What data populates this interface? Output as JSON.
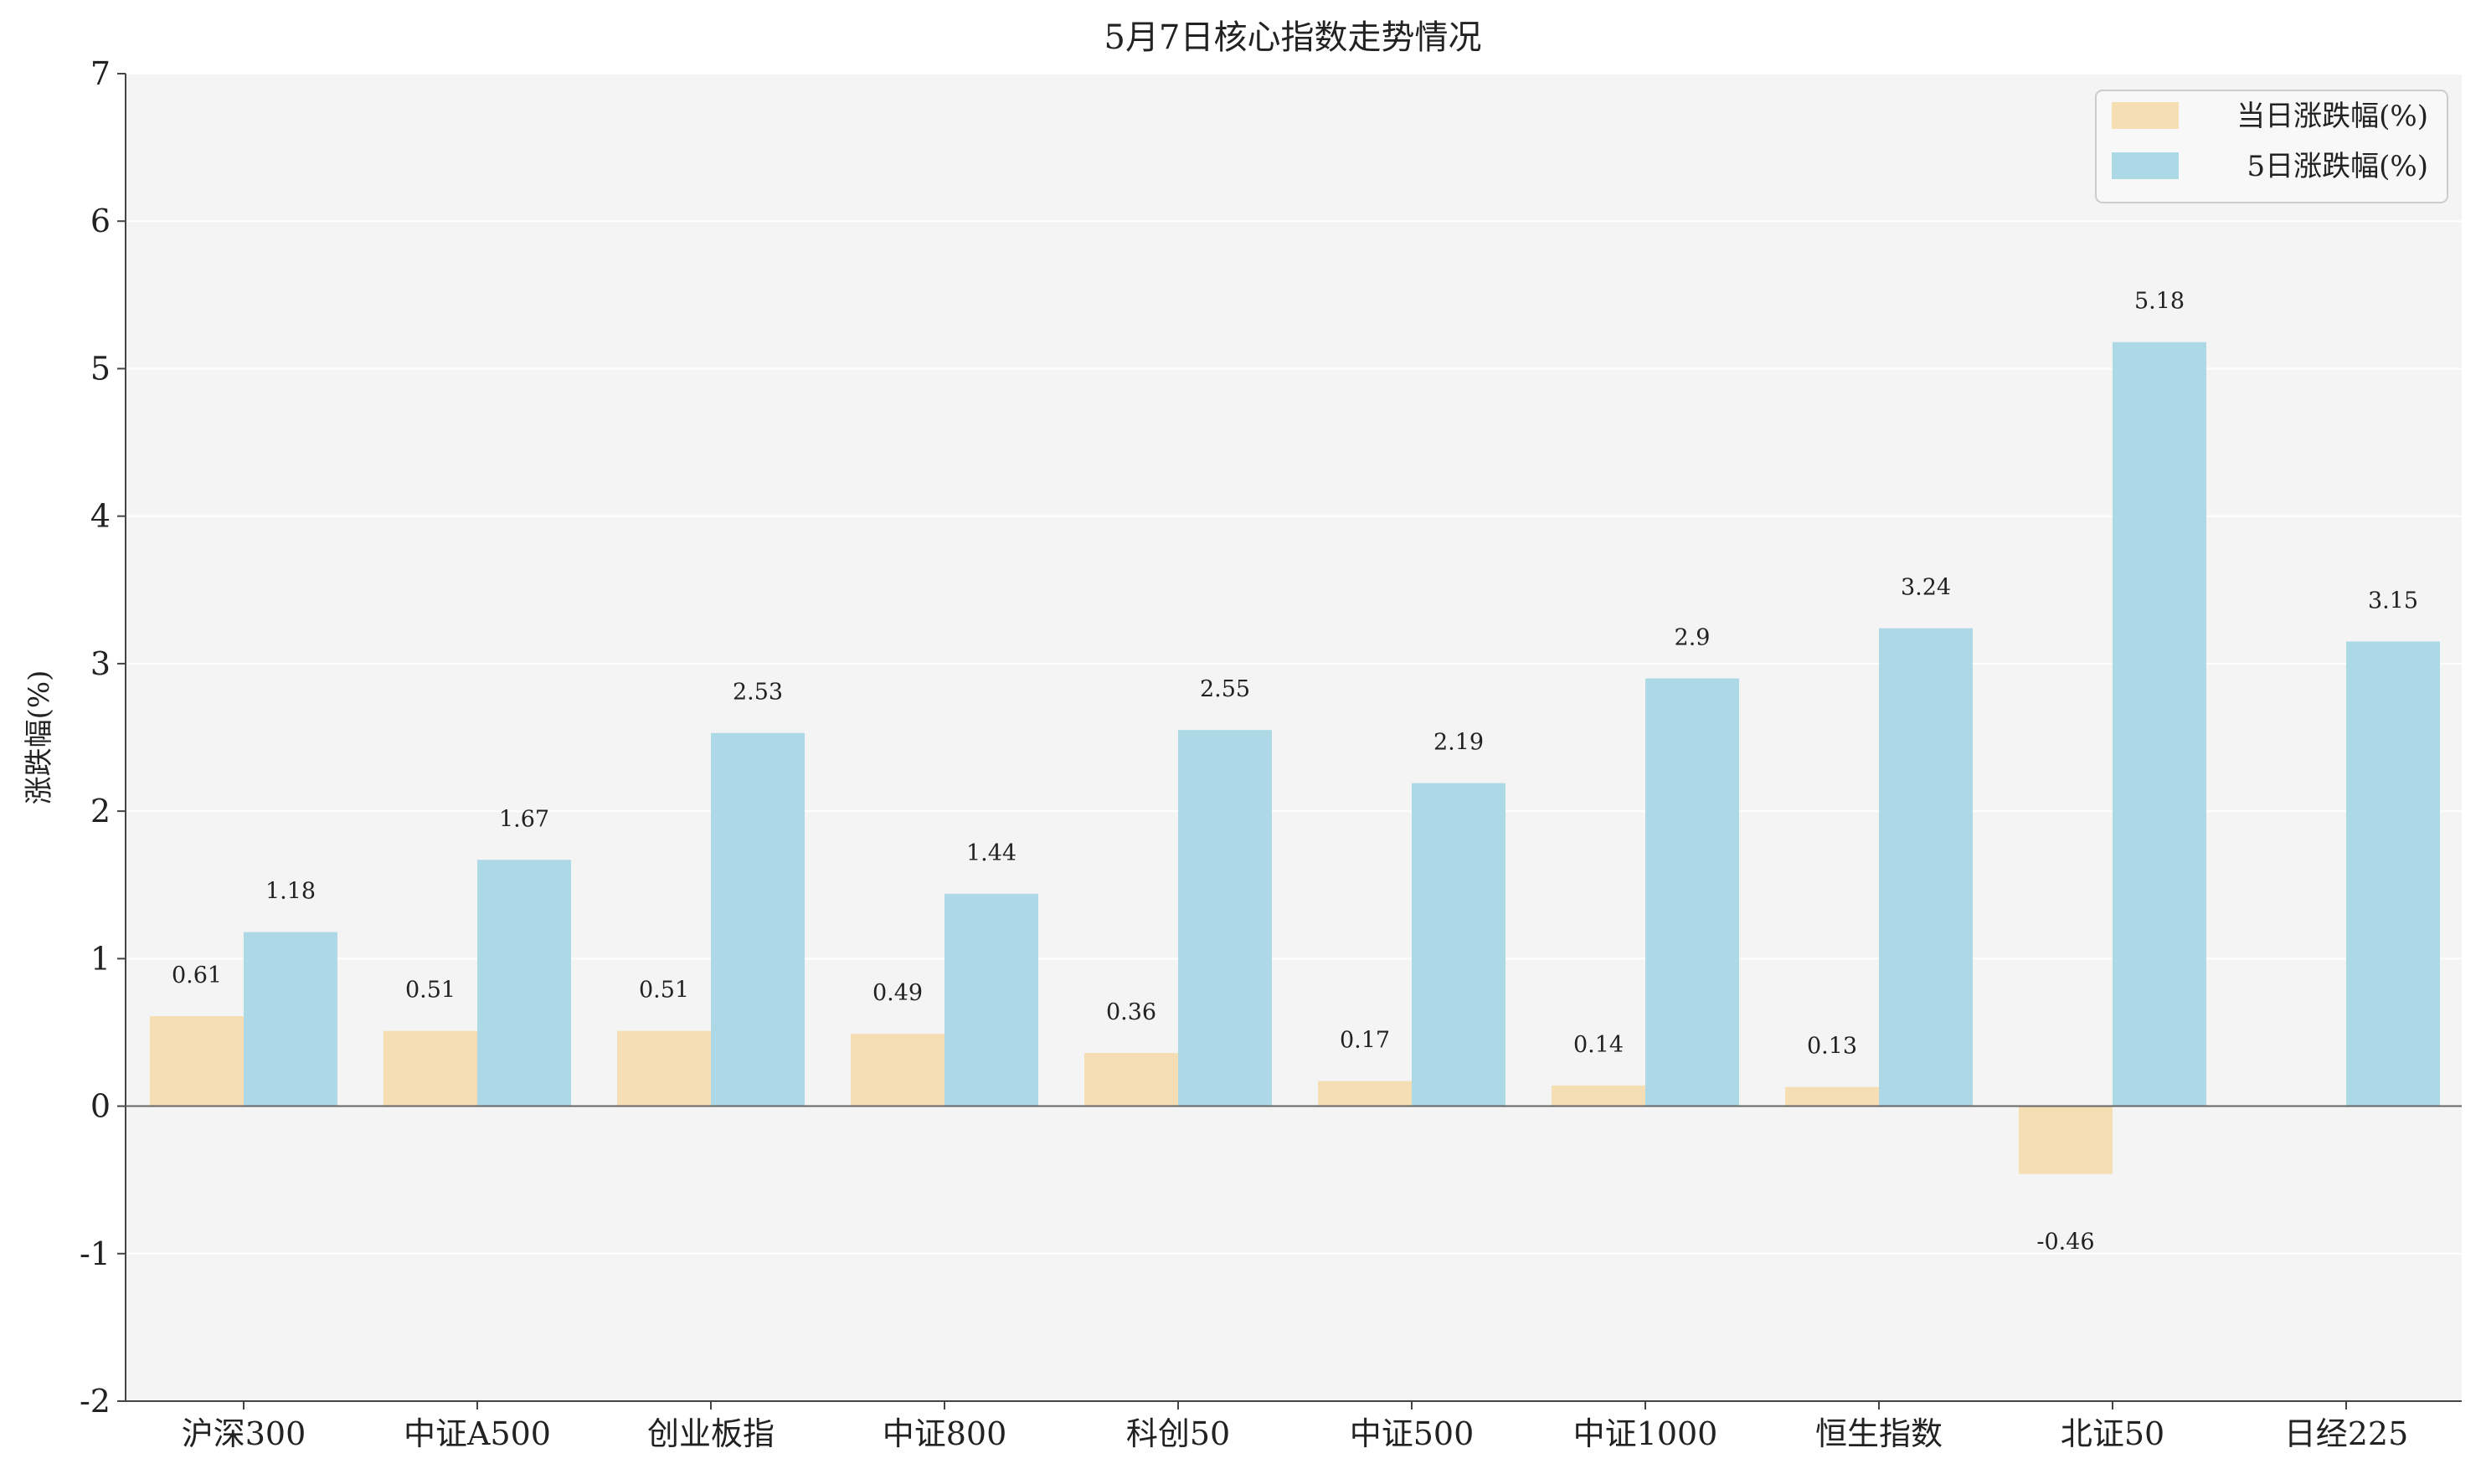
{
  "chart_data": {
    "type": "bar",
    "title": "5月7日核心指数走势情况",
    "xlabel": "",
    "ylabel": "涨跌幅(%)",
    "ylim": [
      -2,
      7
    ],
    "yticks": [
      -2,
      -1,
      0,
      1,
      2,
      3,
      4,
      5,
      6,
      7
    ],
    "grid": true,
    "legend_position": "top-right",
    "categories": [
      "沪深300",
      "中证A500",
      "创业板指",
      "中证800",
      "科创50",
      "中证500",
      "中证1000",
      "恒生指数",
      "北证50",
      "日经225"
    ],
    "series": [
      {
        "name": "当日涨跌幅(%)",
        "color": "#f5deb3",
        "values": [
          0.61,
          0.51,
          0.51,
          0.49,
          0.36,
          0.17,
          0.14,
          0.13,
          -0.46,
          null
        ],
        "labels": [
          "0.61",
          "0.51",
          "0.51",
          "0.49",
          "0.36",
          "0.17",
          "0.14",
          "0.13",
          "-0.46",
          ""
        ]
      },
      {
        "name": "5日涨跌幅(%)",
        "color": "#add8e6",
        "values": [
          1.18,
          1.67,
          2.53,
          1.44,
          2.55,
          2.19,
          2.9,
          3.24,
          5.18,
          3.15
        ],
        "labels": [
          "1.18",
          "1.67",
          "2.53",
          "1.44",
          "2.55",
          "2.19",
          "2.9",
          "3.24",
          "5.18",
          "3.15"
        ]
      }
    ]
  }
}
